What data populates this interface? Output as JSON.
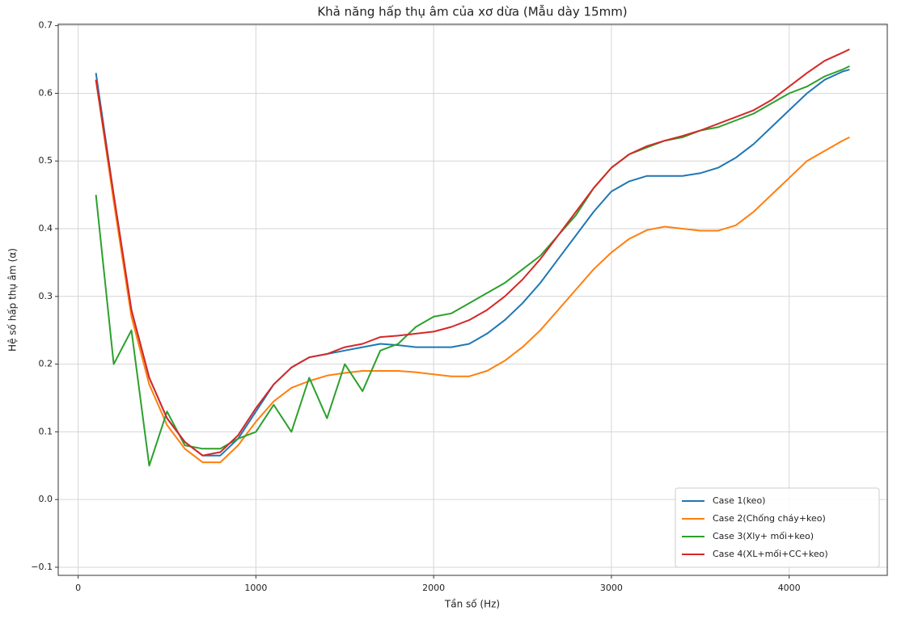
{
  "chart_data": {
    "type": "line",
    "title": "Khả năng hấp thụ âm của xơ dừa (Mẫu dày 15mm)",
    "x_label": "Tần số (Hz)",
    "y_label": "Hệ số hấp thụ âm (α)",
    "x": [
      100,
      200,
      300,
      400,
      500,
      600,
      700,
      800,
      900,
      1000,
      1100,
      1200,
      1300,
      1400,
      1500,
      1600,
      1700,
      1800,
      1900,
      2000,
      2100,
      2200,
      2300,
      2400,
      2500,
      2600,
      2700,
      2800,
      2900,
      3000,
      3100,
      3200,
      3300,
      3400,
      3500,
      3600,
      3700,
      3800,
      3900,
      4000,
      4100,
      4200,
      4300,
      4340
    ],
    "series": [
      {
        "name": "Case 1(keo)",
        "color": "#1f77b4",
        "values": [
          0.63,
          0.45,
          0.28,
          0.18,
          0.12,
          0.085,
          0.065,
          0.065,
          0.09,
          0.13,
          0.17,
          0.195,
          0.21,
          0.215,
          0.22,
          0.225,
          0.23,
          0.228,
          0.225,
          0.225,
          0.225,
          0.23,
          0.245,
          0.265,
          0.29,
          0.32,
          0.355,
          0.39,
          0.425,
          0.455,
          0.47,
          0.478,
          0.478,
          0.478,
          0.482,
          0.49,
          0.505,
          0.525,
          0.55,
          0.575,
          0.6,
          0.62,
          0.632,
          0.635
        ]
      },
      {
        "name": "Case 2(Chống cháy+keo)",
        "color": "#ff7f0e",
        "values": [
          0.62,
          0.44,
          0.27,
          0.17,
          0.11,
          0.075,
          0.055,
          0.055,
          0.08,
          0.115,
          0.145,
          0.165,
          0.175,
          0.183,
          0.187,
          0.19,
          0.19,
          0.19,
          0.188,
          0.185,
          0.182,
          0.182,
          0.19,
          0.205,
          0.225,
          0.25,
          0.28,
          0.31,
          0.34,
          0.365,
          0.385,
          0.398,
          0.403,
          0.4,
          0.397,
          0.397,
          0.405,
          0.425,
          0.45,
          0.475,
          0.5,
          0.515,
          0.53,
          0.535
        ]
      },
      {
        "name": "Case 3(Xly+ mối+keo)",
        "color": "#2ca02c",
        "values": [
          0.45,
          0.2,
          0.25,
          0.05,
          0.13,
          0.08,
          0.075,
          0.075,
          0.09,
          0.1,
          0.14,
          0.1,
          0.18,
          0.12,
          0.2,
          0.16,
          0.22,
          0.23,
          0.255,
          0.27,
          0.275,
          0.29,
          0.305,
          0.32,
          0.34,
          0.36,
          0.39,
          0.42,
          0.46,
          0.49,
          0.51,
          0.52,
          0.53,
          0.535,
          0.545,
          0.55,
          0.56,
          0.57,
          0.585,
          0.6,
          0.61,
          0.625,
          0.635,
          0.64
        ]
      },
      {
        "name": "Case 4(XL+mối+CC+keo)",
        "color": "#d62728",
        "values": [
          0.62,
          0.45,
          0.28,
          0.18,
          0.12,
          0.085,
          0.065,
          0.07,
          0.095,
          0.135,
          0.17,
          0.195,
          0.21,
          0.215,
          0.225,
          0.23,
          0.24,
          0.242,
          0.245,
          0.248,
          0.255,
          0.265,
          0.28,
          0.3,
          0.325,
          0.355,
          0.39,
          0.425,
          0.46,
          0.49,
          0.51,
          0.522,
          0.53,
          0.537,
          0.545,
          0.555,
          0.565,
          0.575,
          0.59,
          0.61,
          0.63,
          0.648,
          0.66,
          0.665
        ]
      }
    ],
    "xlim": [
      -112,
      4552
    ],
    "ylim": [
      -0.112,
      0.702
    ],
    "xticks": [
      0,
      1000,
      2000,
      3000,
      4000
    ],
    "yticks": [
      {
        "value": -0.1,
        "label": "−0.1"
      },
      {
        "value": 0,
        "label": "0.0"
      },
      0.1,
      0.2,
      0.3,
      0.4,
      0.5,
      0.6,
      0.7
    ],
    "grid": true,
    "legend": "lower right"
  }
}
